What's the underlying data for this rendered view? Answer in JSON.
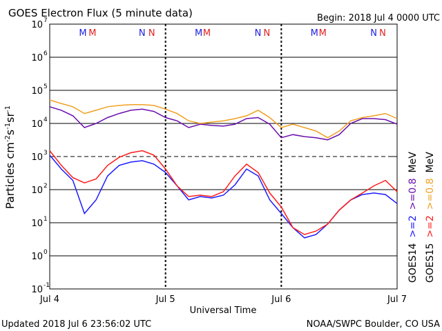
{
  "chart_data": {
    "type": "line",
    "title": "GOES Electron Flux (5 minute data)",
    "subtitle": "Begin: 2018 Jul 4 0000 UTC",
    "xlabel": "Universal Time",
    "ylabel_parts": [
      {
        "text": "Particles cm",
        "sup": "-2"
      },
      {
        "text": "s",
        "sup": "-1"
      },
      {
        "text": "sr",
        "sup": "-1"
      }
    ],
    "footer_left": "Updated 2018 Jul  6 23:56:02 UTC",
    "footer_right": "NOAA/SWPC Boulder, CO USA",
    "log_y": true,
    "grid": true,
    "threshold_line": 1000,
    "xlim": [
      0,
      3
    ],
    "xticks": [
      {
        "value": 0,
        "label": "Jul 4"
      },
      {
        "value": 1,
        "label": "Jul 5"
      },
      {
        "value": 2,
        "label": "Jul 6"
      },
      {
        "value": 3,
        "label": "Jul 7"
      }
    ],
    "ylim": [
      0.1,
      10000000
    ],
    "yticks": [
      {
        "value": 0.1,
        "label": "10",
        "exponent": "-1"
      },
      {
        "value": 1,
        "label": "10",
        "exponent": "0"
      },
      {
        "value": 10,
        "label": "10",
        "exponent": "1"
      },
      {
        "value": 100,
        "label": "10",
        "exponent": "2"
      },
      {
        "value": 1000,
        "label": "10",
        "exponent": "3"
      },
      {
        "value": 10000,
        "label": "10",
        "exponent": "4"
      },
      {
        "value": 100000,
        "label": "10",
        "exponent": "5"
      },
      {
        "value": 1000000,
        "label": "10",
        "exponent": "6"
      },
      {
        "value": 10000000,
        "label": "10",
        "exponent": "7"
      }
    ],
    "annotations": [
      {
        "text": "M",
        "x": 0.286,
        "color": "#2020e0"
      },
      {
        "text": "M",
        "x": 0.369,
        "color": "#e02020"
      },
      {
        "text": "N",
        "x": 0.798,
        "color": "#2020e0"
      },
      {
        "text": "N",
        "x": 0.881,
        "color": "#e02020"
      },
      {
        "text": "M",
        "x": 1.286,
        "color": "#2020e0"
      },
      {
        "text": "M",
        "x": 1.357,
        "color": "#e02020"
      },
      {
        "text": "N",
        "x": 1.798,
        "color": "#2020e0"
      },
      {
        "text": "N",
        "x": 1.875,
        "color": "#e02020"
      },
      {
        "text": "M",
        "x": 2.286,
        "color": "#2020e0"
      },
      {
        "text": "M",
        "x": 2.357,
        "color": "#e02020"
      },
      {
        "text": "N",
        "x": 2.798,
        "color": "#2020e0"
      },
      {
        "text": "N",
        "x": 2.875,
        "color": "#e02020"
      }
    ],
    "unit": "MeV",
    "x": [
      0,
      0.1,
      0.2,
      0.3,
      0.4,
      0.5,
      0.6,
      0.7,
      0.8,
      0.9,
      1,
      1.1,
      1.2,
      1.3,
      1.4,
      1.5,
      1.6,
      1.7,
      1.8,
      1.9,
      2,
      2.1,
      2.2,
      2.3,
      2.4,
      2.5,
      2.6,
      2.7,
      2.8,
      2.9,
      3
    ],
    "satellites": [
      {
        "name": "GOES14",
        "series": [
          {
            "name": ">=2",
            "color": "#1a1aff",
            "values": [
              1100,
              420,
              190,
              19,
              49,
              260,
              540,
              680,
              750,
              590,
              330,
              130,
              49,
              62,
              56,
              68,
              140,
              420,
              260,
              49,
              19,
              7.1,
              3.5,
              4.4,
              9.1,
              24,
              49,
              71,
              79,
              71,
              38
            ]
          },
          {
            "name": ">=0.8",
            "color": "#6a0dad",
            "values": [
              32000,
              25000,
              17000,
              7500,
              10000,
              15000,
              20000,
              25000,
              27000,
              23000,
              15000,
              12000,
              7500,
              9500,
              8700,
              8300,
              9500,
              14000,
              15000,
              9500,
              3700,
              4600,
              4000,
              3700,
              3200,
              4600,
              10000,
              14000,
              14000,
              13000,
              9500
            ]
          }
        ]
      },
      {
        "name": "GOES15",
        "series": [
          {
            "name": ">=2",
            "color": "#ff1a1a",
            "values": [
              1500,
              540,
              230,
              160,
              210,
              540,
              950,
              1300,
              1500,
              1100,
              420,
              130,
              62,
              68,
              62,
              87,
              260,
              590,
              330,
              79,
              30,
              7.1,
              4.4,
              5.6,
              9.1,
              24,
              49,
              79,
              130,
              190,
              87
            ]
          },
          {
            "name": ">=0.8",
            "color": "#f0a020",
            "values": [
              51000,
              40000,
              32000,
              20000,
              25000,
              32000,
              35000,
              37000,
              37000,
              35000,
              27000,
              20000,
              12000,
              10000,
              11000,
              12000,
              14000,
              17000,
              25000,
              15000,
              7500,
              9500,
              7500,
              5900,
              3700,
              5900,
              12000,
              15000,
              17000,
              20000,
              14000
            ]
          }
        ]
      }
    ]
  }
}
